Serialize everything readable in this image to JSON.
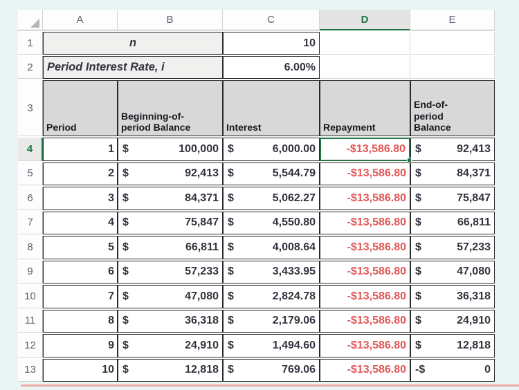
{
  "sheet": {
    "column_headers": [
      "A",
      "B",
      "C",
      "D",
      "E"
    ],
    "selected_column": "D",
    "row_headers_param": [
      "1",
      "2"
    ],
    "header_row_number": "3",
    "active_cell": "D4"
  },
  "params": {
    "n_label": "n",
    "n_value": "10",
    "rate_label": "Period Interest Rate, i",
    "rate_value": "6.00%"
  },
  "table": {
    "headers": {
      "period": "Period",
      "begin": "Beginning-of-\nperiod Balance",
      "interest": "Interest",
      "repayment": "Repayment",
      "end": "End-of-\nperiod\nBalance"
    },
    "rows": [
      {
        "row_num": "4",
        "selected": true,
        "active": true,
        "period": "1",
        "begin_sym": "$",
        "begin": "100,000",
        "interest_sym": "$",
        "interest": "6,000.00",
        "repayment": "-$13,586.80",
        "end_sym": "$",
        "end": "92,413"
      },
      {
        "row_num": "5",
        "period": "2",
        "begin_sym": "$",
        "begin": "92,413",
        "interest_sym": "$",
        "interest": "5,544.79",
        "repayment": "-$13,586.80",
        "end_sym": "$",
        "end": "84,371"
      },
      {
        "row_num": "6",
        "period": "3",
        "begin_sym": "$",
        "begin": "84,371",
        "interest_sym": "$",
        "interest": "5,062.27",
        "repayment": "-$13,586.80",
        "end_sym": "$",
        "end": "75,847"
      },
      {
        "row_num": "7",
        "period": "4",
        "begin_sym": "$",
        "begin": "75,847",
        "interest_sym": "$",
        "interest": "4,550.80",
        "repayment": "-$13,586.80",
        "end_sym": "$",
        "end": "66,811"
      },
      {
        "row_num": "8",
        "period": "5",
        "begin_sym": "$",
        "begin": "66,811",
        "interest_sym": "$",
        "interest": "4,008.64",
        "repayment": "-$13,586.80",
        "end_sym": "$",
        "end": "57,233"
      },
      {
        "row_num": "9",
        "period": "6",
        "begin_sym": "$",
        "begin": "57,233",
        "interest_sym": "$",
        "interest": "3,433.95",
        "repayment": "-$13,586.80",
        "end_sym": "$",
        "end": "47,080"
      },
      {
        "row_num": "10",
        "period": "7",
        "begin_sym": "$",
        "begin": "47,080",
        "interest_sym": "$",
        "interest": "2,824.78",
        "repayment": "-$13,586.80",
        "end_sym": "$",
        "end": "36,318"
      },
      {
        "row_num": "11",
        "period": "8",
        "begin_sym": "$",
        "begin": "36,318",
        "interest_sym": "$",
        "interest": "2,179.06",
        "repayment": "-$13,586.80",
        "end_sym": "$",
        "end": "24,910"
      },
      {
        "row_num": "12",
        "period": "9",
        "begin_sym": "$",
        "begin": "24,910",
        "interest_sym": "$",
        "interest": "1,494.60",
        "repayment": "-$13,586.80",
        "end_sym": "$",
        "end": "12,818"
      },
      {
        "row_num": "13",
        "period": "10",
        "begin_sym": "$",
        "begin": "12,818",
        "interest_sym": "$",
        "interest": "769.06",
        "repayment": "-$13,586.80",
        "end_sym": "-$",
        "end": "0"
      }
    ]
  },
  "colors": {
    "accent_green": "#217346",
    "negative_red": "#e25757",
    "header_fill": "#d8d8d8",
    "param_fill": "#f0f0ef",
    "page_background": "#e9f4f3"
  }
}
